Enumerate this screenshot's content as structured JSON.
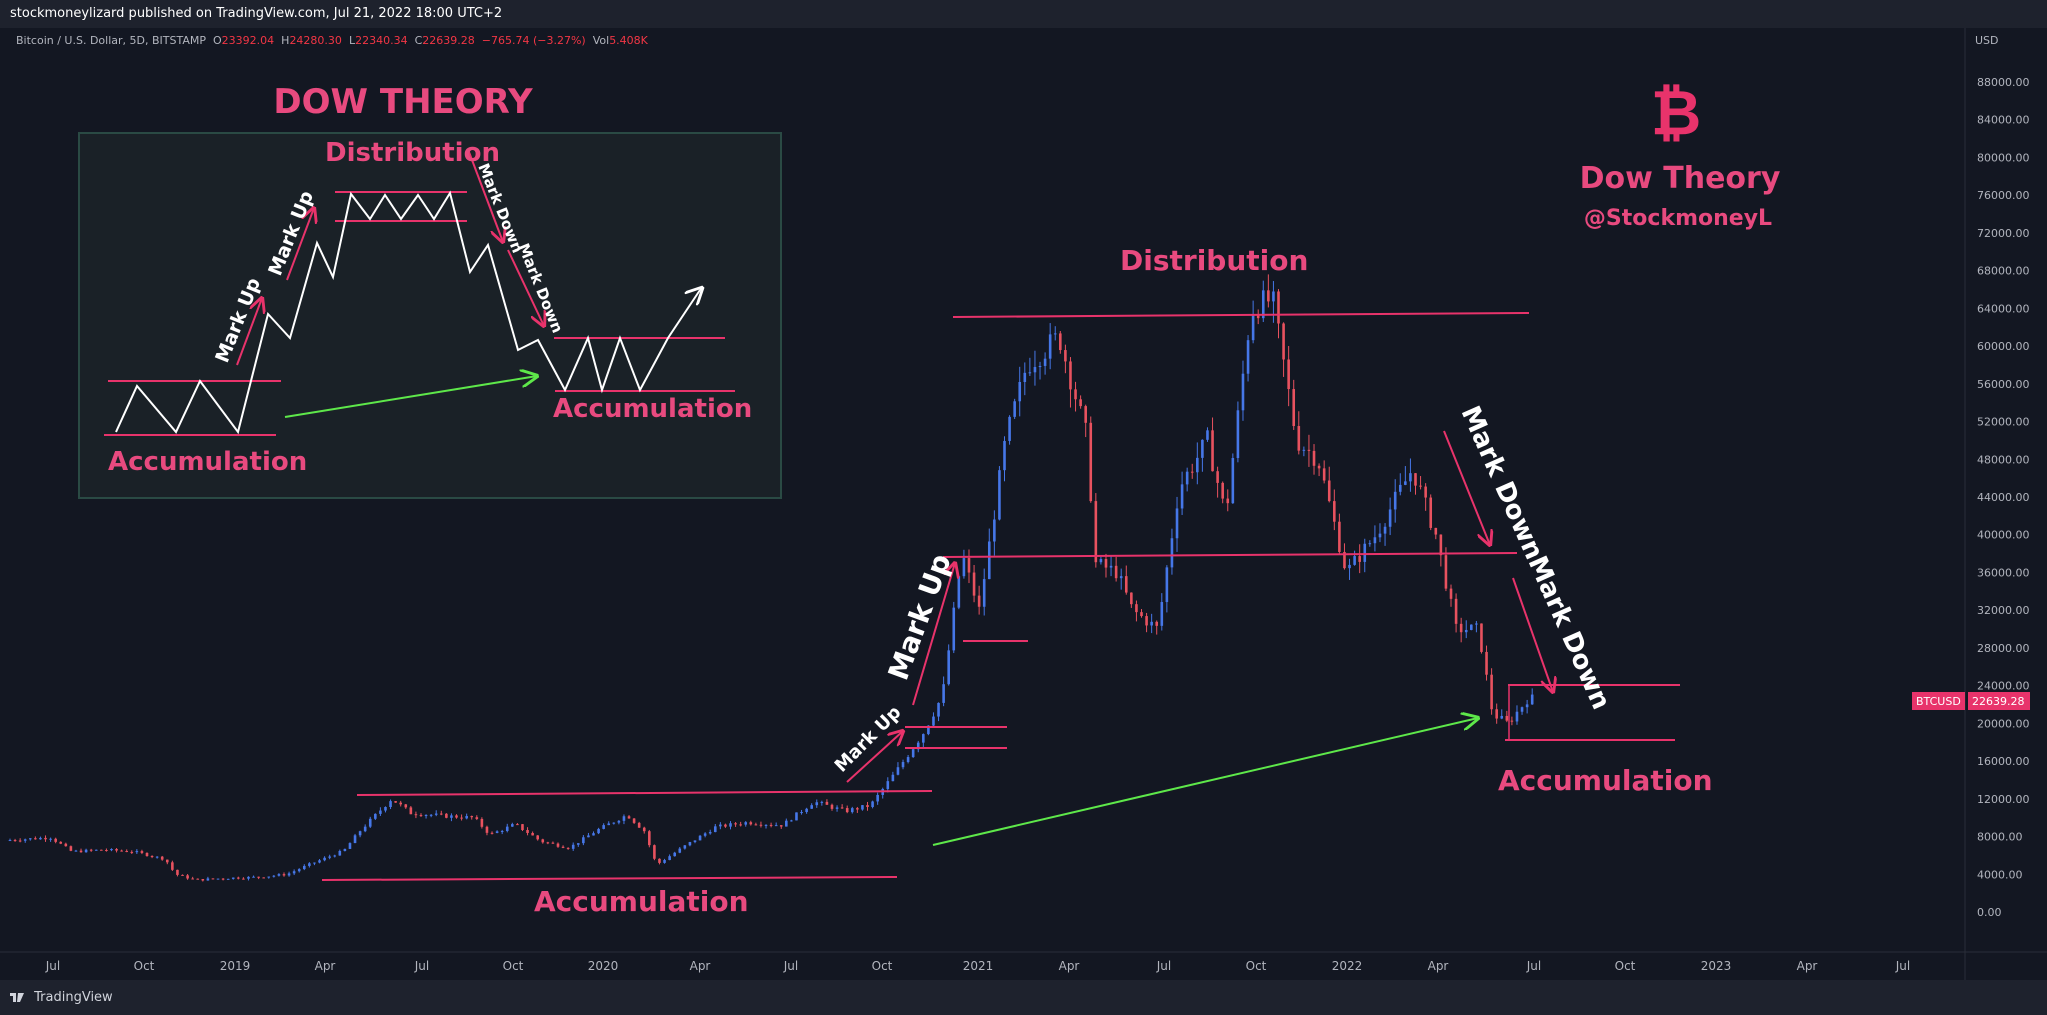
{
  "header": {
    "published": "stockmoneylizard published on TradingView.com, Jul 21, 2022 18:00 UTC+2"
  },
  "legend": {
    "symbol": "Bitcoin / U.S. Dollar, 5D, BITSTAMP",
    "open_label": "O",
    "open": "23392.04",
    "high_label": "H",
    "high": "24280.30",
    "low_label": "L",
    "low": "22340.34",
    "close_label": "C",
    "close": "22639.28",
    "change": "−765.74 (−3.27%)",
    "vol_label": "Vol",
    "vol": "5.408K"
  },
  "footer": {
    "brand": "TradingView"
  },
  "colors": {
    "background": "#131722",
    "up": "#4677e8",
    "down": "#e8525f",
    "annotation_pink": "#e84a7f",
    "zone_line": "#e8336b",
    "green_arrow": "#5ee84a",
    "white": "#ffffff"
  },
  "chart_data": {
    "type": "candlestick",
    "currency": "USD",
    "price_label": {
      "symbol": "BTCUSD",
      "value": "22639.28"
    },
    "y_ticks": [
      "88000.00",
      "84000.00",
      "80000.00",
      "76000.00",
      "72000.00",
      "68000.00",
      "64000.00",
      "60000.00",
      "56000.00",
      "52000.00",
      "48000.00",
      "44000.00",
      "40000.00",
      "36000.00",
      "32000.00",
      "28000.00",
      "24000.00",
      "20000.00",
      "16000.00",
      "12000.00",
      "8000.00",
      "4000.00",
      "0.00"
    ],
    "x_ticks": [
      "Jul",
      "Oct",
      "2019",
      "Apr",
      "Jul",
      "Oct",
      "2020",
      "Apr",
      "Jul",
      "Oct",
      "2021",
      "Apr",
      "Jul",
      "Oct",
      "2022",
      "Apr",
      "Jul",
      "Oct",
      "2023",
      "Apr",
      "Jul"
    ],
    "ylim": [
      0,
      90000
    ],
    "x_range": [
      "2018-06-10",
      "2023-08-15"
    ],
    "price_path": [
      [
        "2018-06-10",
        7600
      ],
      [
        "2018-07-25",
        7900
      ],
      [
        "2018-08-15",
        6400
      ],
      [
        "2018-09-15",
        6600
      ],
      [
        "2018-10-15",
        6400
      ],
      [
        "2018-11-15",
        5600
      ],
      [
        "2018-11-25",
        4000
      ],
      [
        "2018-12-15",
        3400
      ],
      [
        "2019-01-15",
        3600
      ],
      [
        "2019-02-15",
        3700
      ],
      [
        "2019-03-15",
        4000
      ],
      [
        "2019-04-05",
        5000
      ],
      [
        "2019-05-10",
        6500
      ],
      [
        "2019-05-25",
        8500
      ],
      [
        "2019-06-26",
        12000
      ],
      [
        "2019-07-15",
        10500
      ],
      [
        "2019-08-15",
        10200
      ],
      [
        "2019-09-15",
        10000
      ],
      [
        "2019-10-01",
        8200
      ],
      [
        "2019-10-26",
        9300
      ],
      [
        "2019-11-20",
        7500
      ],
      [
        "2019-12-18",
        6800
      ],
      [
        "2020-01-15",
        8700
      ],
      [
        "2020-02-13",
        10300
      ],
      [
        "2020-03-01",
        8600
      ],
      [
        "2020-03-13",
        5000
      ],
      [
        "2020-04-10",
        7000
      ],
      [
        "2020-05-10",
        9000
      ],
      [
        "2020-06-10",
        9500
      ],
      [
        "2020-07-15",
        9200
      ],
      [
        "2020-08-15",
        11700
      ],
      [
        "2020-09-15",
        10700
      ],
      [
        "2020-10-10",
        11300
      ],
      [
        "2020-11-05",
        15000
      ],
      [
        "2020-12-01",
        19000
      ],
      [
        "2020-12-20",
        23000
      ],
      [
        "2021-01-08",
        38000
      ],
      [
        "2021-01-25",
        32000
      ],
      [
        "2021-02-20",
        50000
      ],
      [
        "2021-03-13",
        58000
      ],
      [
        "2021-04-14",
        61000
      ],
      [
        "2021-05-12",
        50000
      ],
      [
        "2021-05-19",
        37000
      ],
      [
        "2021-06-10",
        36000
      ],
      [
        "2021-06-25",
        32000
      ],
      [
        "2021-07-20",
        30000
      ],
      [
        "2021-08-10",
        45000
      ],
      [
        "2021-09-07",
        50000
      ],
      [
        "2021-09-25",
        42000
      ],
      [
        "2021-10-20",
        64000
      ],
      [
        "2021-11-10",
        65000
      ],
      [
        "2021-12-04",
        50000
      ],
      [
        "2021-12-25",
        48000
      ],
      [
        "2022-01-22",
        36000
      ],
      [
        "2022-02-20",
        40000
      ],
      [
        "2022-03-28",
        47000
      ],
      [
        "2022-04-20",
        40000
      ],
      [
        "2022-05-10",
        30000
      ],
      [
        "2022-06-01",
        30000
      ],
      [
        "2022-06-15",
        21000
      ],
      [
        "2022-06-30",
        20000
      ],
      [
        "2022-07-20",
        22639
      ]
    ],
    "annotations": {
      "ranges": [
        {
          "label": "Accumulation",
          "from": "2019-04-01",
          "to": "2020-11-01",
          "high": 12000,
          "low": 4000
        },
        {
          "label": "Mark Up",
          "from": "2020-11-15",
          "to": "2020-12-20",
          "high": 20000,
          "low": 17500
        },
        {
          "label": "Mark Up",
          "from": "2020-12-20",
          "to": "2021-01-20",
          "high": 29000,
          "low": 29000
        },
        {
          "label": "Distribution",
          "from": "2021-01-05",
          "to": "2022-05-15",
          "high": 64000,
          "low": 38000
        },
        {
          "label": "Accumulation",
          "from": "2022-06-10",
          "to": "2022-11-20",
          "high": 24000,
          "low": 18000
        }
      ],
      "labels": [
        "Accumulation",
        "Mark Up",
        "Mark Up",
        "Distribution",
        "Mark Down",
        "Mark Down",
        "Accumulation"
      ],
      "title_right": "Dow Theory",
      "handle": "@StockmoneyL",
      "logo_glyph": "₿"
    },
    "inset": {
      "title": "DOW THEORY",
      "labels": [
        "Distribution",
        "Mark Up",
        "Mark Up",
        "Mark Down",
        "Mark Down",
        "Accumulation",
        "Accumulation"
      ]
    }
  }
}
